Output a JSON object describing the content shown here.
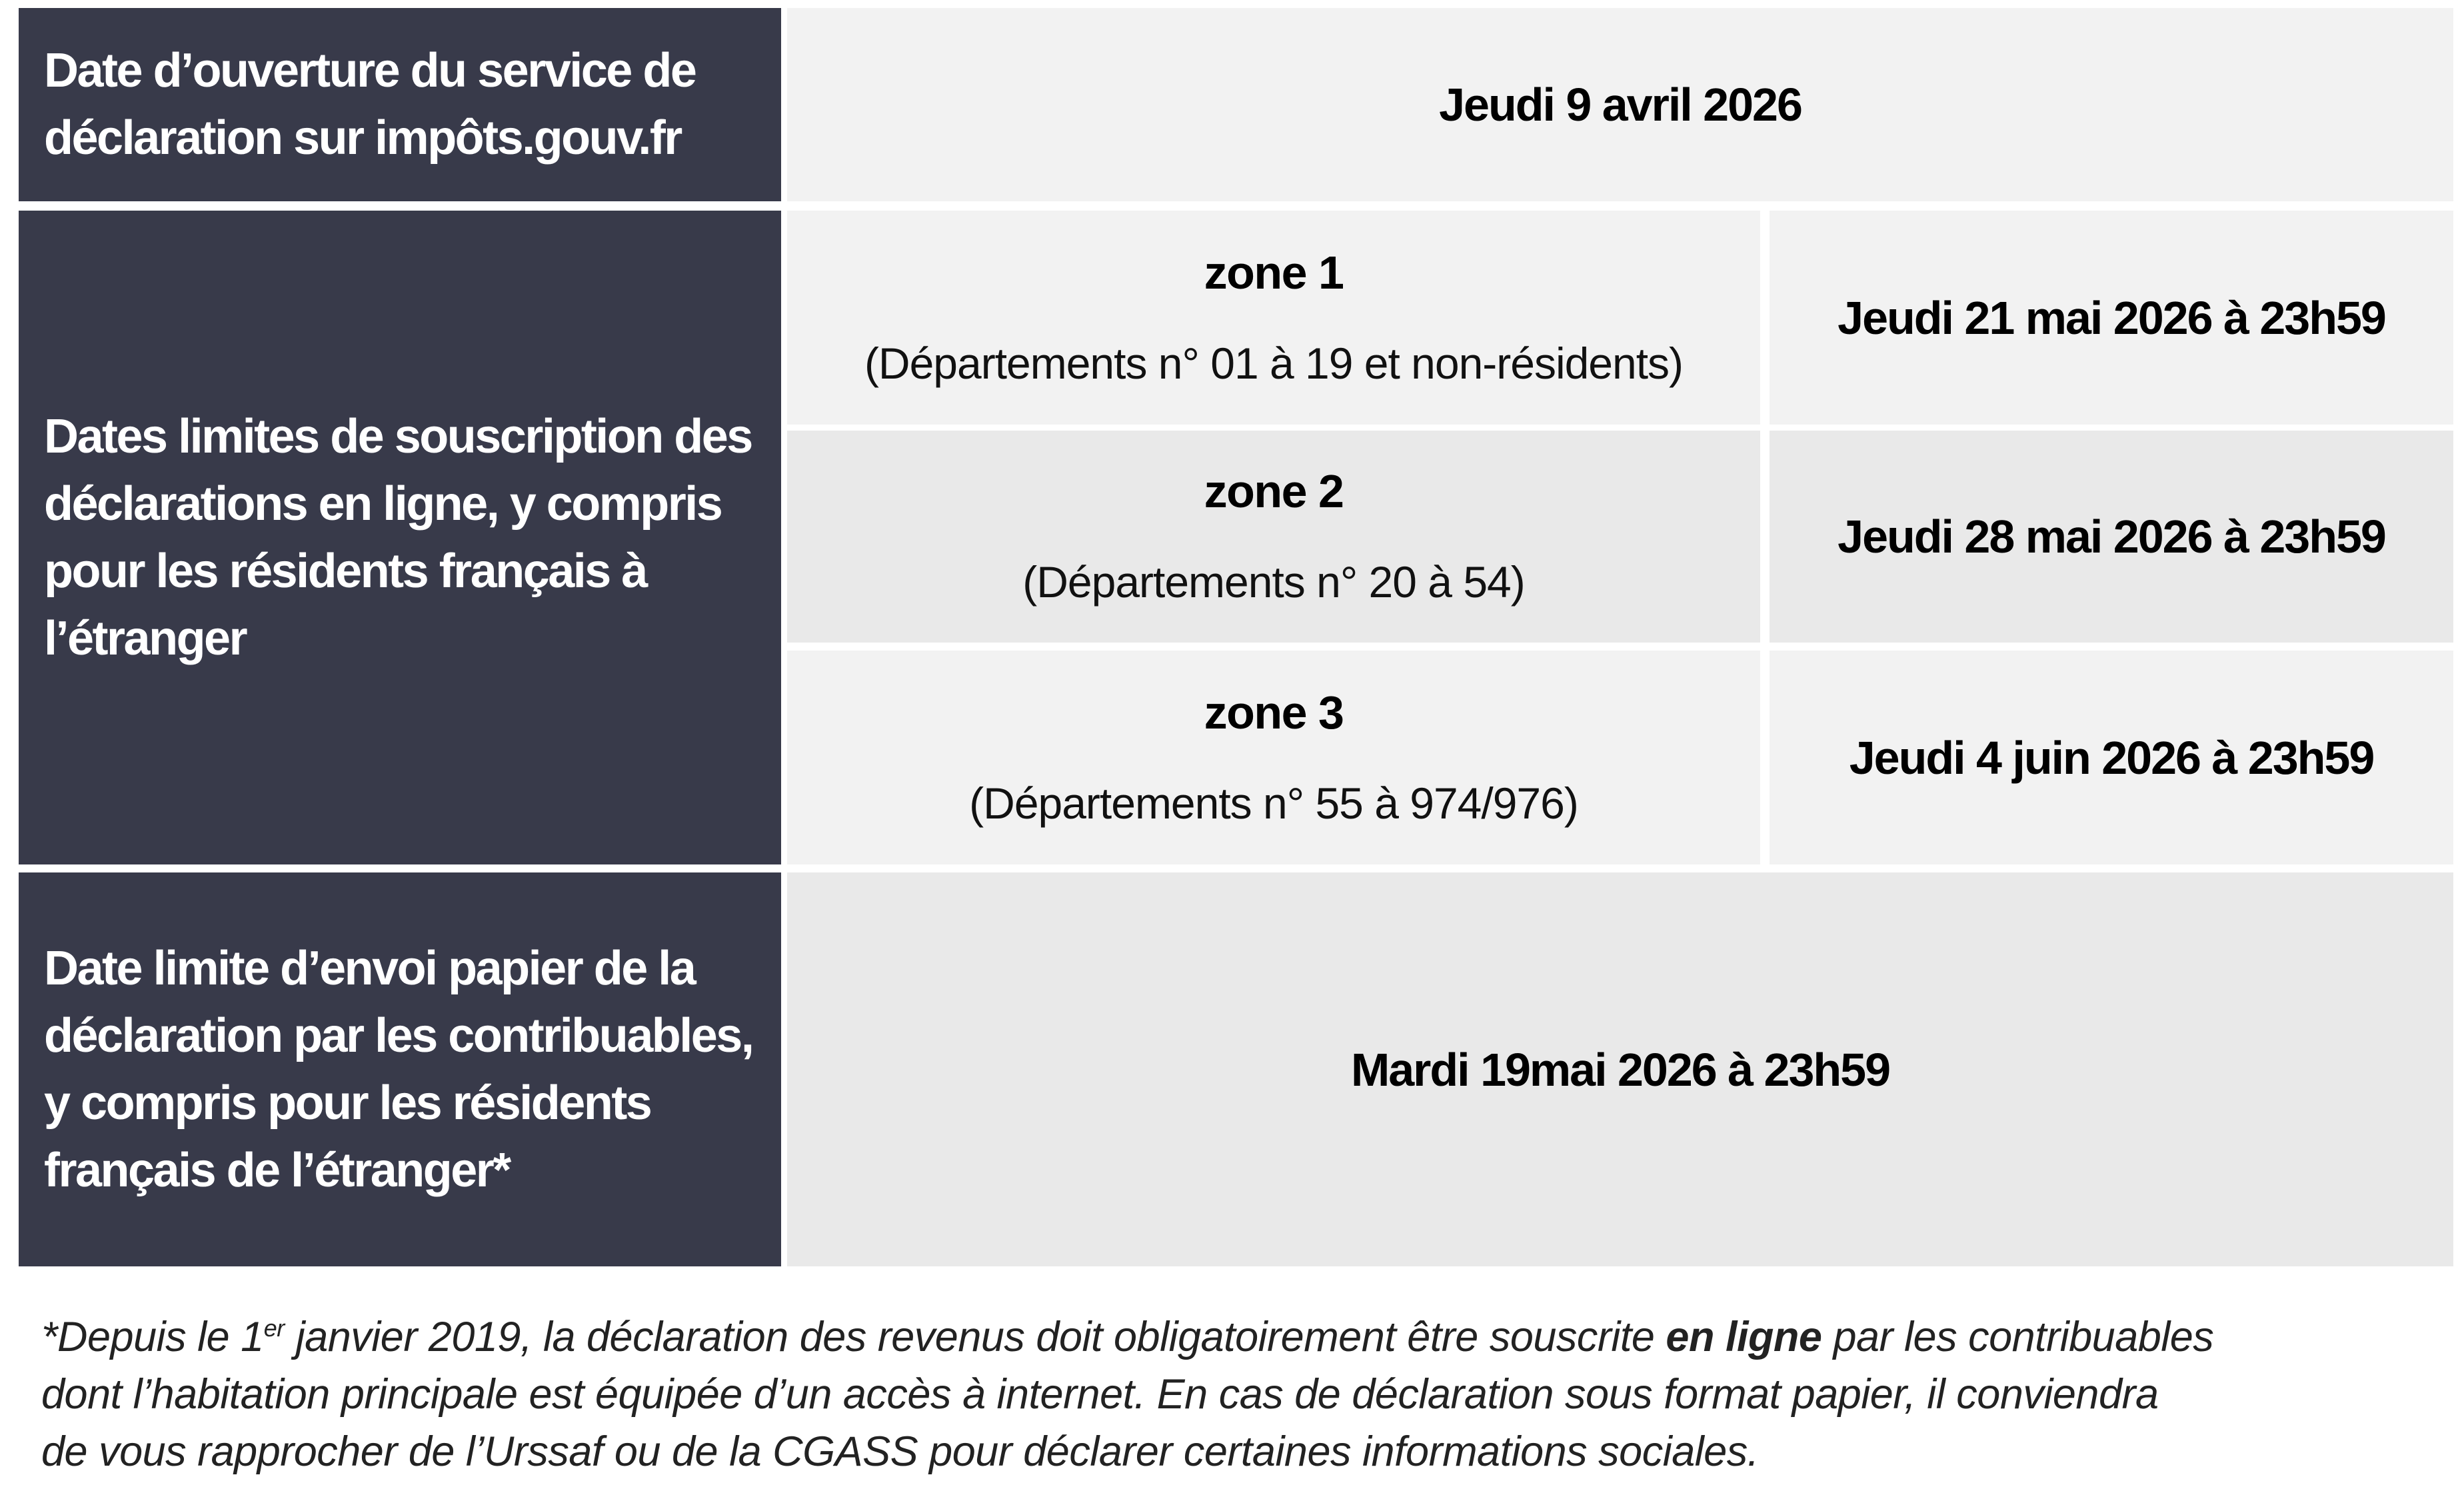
{
  "rows": {
    "opening": {
      "label": "Date d’ouverture du service de déclaration sur impôts.gouv.fr",
      "value": "Jeudi 9 avril 2026"
    },
    "online": {
      "label": "Dates limites de souscription des déclarations en ligne, y compris pour les résidents français à l’étranger",
      "zones": [
        {
          "name": "zone 1",
          "departments": "(Départements n° 01 à 19 et non-résidents)",
          "deadline": "Jeudi 21 mai 2026 à 23h59"
        },
        {
          "name": "zone 2",
          "departments": "(Départements n° 20 à 54)",
          "deadline": "Jeudi 28 mai 2026 à 23h59"
        },
        {
          "name": "zone 3",
          "departments": "(Départements n° 55 à 974/976)",
          "deadline": "Jeudi 4 juin 2026 à 23h59"
        }
      ]
    },
    "paper": {
      "label": "Date limite d’envoi papier de la déclaration par les contribuables, y compris pour les résidents français de l’étranger*",
      "value": "Mardi 19mai 2026 à 23h59"
    }
  },
  "footnote": {
    "part1": "*Depuis le 1",
    "sup": "er",
    "part2": " janvier 2019, la déclaration des revenus doit obligatoirement être souscrite ",
    "bold": "en ligne",
    "part3": " par les contribuables",
    "line2": "dont l’habitation principale est équipée d’un accès à internet. En cas de déclaration sous format papier, il conviendra",
    "line3": "de vous rapprocher de l’Urssaf ou de la CGASS pour déclarer certaines informations sociales."
  },
  "colors": {
    "header_bg": "#383a4a",
    "cell_light": "#f2f2f2",
    "cell_alt": "#e9e9e9"
  }
}
